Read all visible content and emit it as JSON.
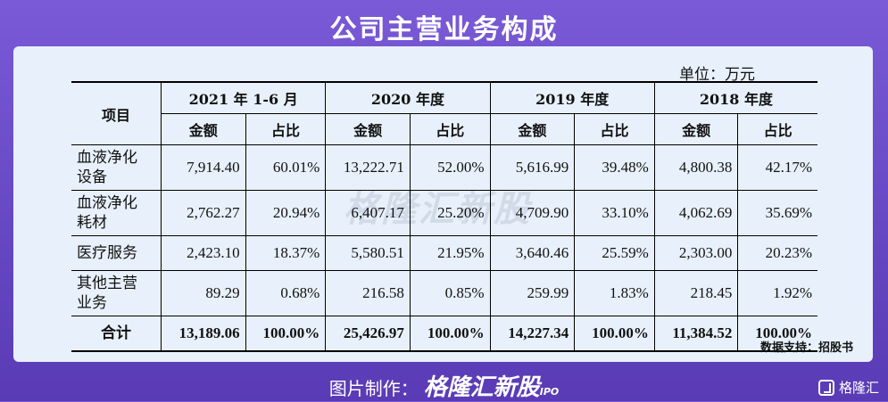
{
  "page": {
    "title": "公司主营业务构成",
    "unit": "单位：万元",
    "source": "数据支持：招股书",
    "watermark": "格隆汇新股",
    "footer_label": "图片制作：",
    "footer_brand": "格隆汇新股",
    "footer_ipo": "IPO",
    "corner_brand": "格隆汇"
  },
  "table": {
    "item_header": "项目",
    "periods": [
      "2021 年 1-6 月",
      "2020 年度",
      "2019 年度",
      "2018 年度"
    ],
    "sub_headers": [
      "金额",
      "占比"
    ],
    "rows": [
      {
        "name": "血液净化设备",
        "name_lines": [
          "血液净化",
          "设备"
        ],
        "cells": [
          "7,914.40",
          "60.01%",
          "13,222.71",
          "52.00%",
          "5,616.99",
          "39.48%",
          "4,800.38",
          "42.17%"
        ]
      },
      {
        "name": "血液净化耗材",
        "name_lines": [
          "血液净化",
          "耗材"
        ],
        "cells": [
          "2,762.27",
          "20.94%",
          "6,407.17",
          "25.20%",
          "4,709.90",
          "33.10%",
          "4,062.69",
          "35.69%"
        ]
      },
      {
        "name": "医疗服务",
        "name_lines": [
          "医疗服务",
          ""
        ],
        "cells": [
          "2,423.10",
          "18.37%",
          "5,580.51",
          "21.95%",
          "3,640.46",
          "25.59%",
          "2,303.00",
          "20.23%"
        ]
      },
      {
        "name": "其他主营业务",
        "name_lines": [
          "其他主营",
          "业务"
        ],
        "cells": [
          "89.29",
          "0.68%",
          "216.58",
          "0.85%",
          "259.99",
          "1.83%",
          "218.45",
          "1.92%"
        ]
      },
      {
        "name": "合计",
        "name_lines": [
          "合计",
          ""
        ],
        "cells": [
          "13,189.06",
          "100.00%",
          "25,426.97",
          "100.00%",
          "14,227.34",
          "100.00%",
          "11,384.52",
          "100.00%"
        ]
      }
    ]
  }
}
